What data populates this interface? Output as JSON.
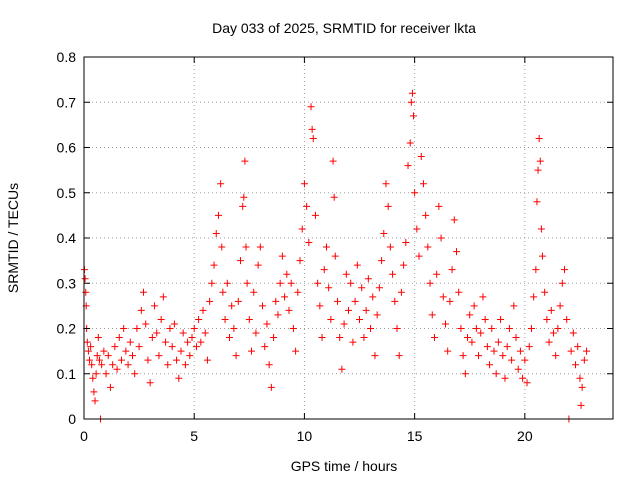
{
  "chart_data": {
    "type": "scatter",
    "title": "Day 033 of 2025, SRMTID for receiver lkta",
    "xlabel": "GPS time / hours",
    "ylabel": "SRMTID / TECUs",
    "xlim": [
      0,
      24
    ],
    "ylim": [
      0,
      0.8
    ],
    "xticks": [
      0,
      5,
      10,
      15,
      20
    ],
    "yticks": [
      0,
      0.1,
      0.2,
      0.3,
      0.4,
      0.5,
      0.6,
      0.7,
      0.8
    ],
    "grid": true,
    "marker": "+",
    "series": [
      {
        "name": "SRMTID",
        "color": "#ff0000",
        "points": [
          [
            0.02,
            0.33
          ],
          [
            0.05,
            0.31
          ],
          [
            0.08,
            0.28
          ],
          [
            0.1,
            0.25
          ],
          [
            0.12,
            0.2
          ],
          [
            0.15,
            0.17
          ],
          [
            0.2,
            0.15
          ],
          [
            0.25,
            0.13
          ],
          [
            0.3,
            0.16
          ],
          [
            0.35,
            0.12
          ],
          [
            0.4,
            0.09
          ],
          [
            0.45,
            0.06
          ],
          [
            0.5,
            0.04
          ],
          [
            0.55,
            0.1
          ],
          [
            0.6,
            0.14
          ],
          [
            0.65,
            0.18
          ],
          [
            0.7,
            0.13
          ],
          [
            0.75,
            0.0
          ],
          [
            0.8,
            0.12
          ],
          [
            0.9,
            0.15
          ],
          [
            1.0,
            0.1
          ],
          [
            1.1,
            0.14
          ],
          [
            1.2,
            0.07
          ],
          [
            1.3,
            0.12
          ],
          [
            1.4,
            0.16
          ],
          [
            1.5,
            0.11
          ],
          [
            1.6,
            0.18
          ],
          [
            1.7,
            0.13
          ],
          [
            1.8,
            0.2
          ],
          [
            1.9,
            0.15
          ],
          [
            2.0,
            0.12
          ],
          [
            2.1,
            0.17
          ],
          [
            2.2,
            0.14
          ],
          [
            2.3,
            0.1
          ],
          [
            2.4,
            0.2
          ],
          [
            2.5,
            0.16
          ],
          [
            2.6,
            0.24
          ],
          [
            2.7,
            0.28
          ],
          [
            2.8,
            0.21
          ],
          [
            2.9,
            0.13
          ],
          [
            3.0,
            0.08
          ],
          [
            3.1,
            0.18
          ],
          [
            3.2,
            0.25
          ],
          [
            3.3,
            0.19
          ],
          [
            3.4,
            0.14
          ],
          [
            3.5,
            0.22
          ],
          [
            3.6,
            0.27
          ],
          [
            3.7,
            0.17
          ],
          [
            3.8,
            0.12
          ],
          [
            3.9,
            0.2
          ],
          [
            4.0,
            0.16
          ],
          [
            4.1,
            0.21
          ],
          [
            4.2,
            0.13
          ],
          [
            4.3,
            0.09
          ],
          [
            4.4,
            0.15
          ],
          [
            4.5,
            0.19
          ],
          [
            4.6,
            0.12
          ],
          [
            4.7,
            0.17
          ],
          [
            4.8,
            0.14
          ],
          [
            4.9,
            0.18
          ],
          [
            5.0,
            0.2
          ],
          [
            5.1,
            0.16
          ],
          [
            5.2,
            0.22
          ],
          [
            5.3,
            0.17
          ],
          [
            5.4,
            0.24
          ],
          [
            5.5,
            0.19
          ],
          [
            5.6,
            0.13
          ],
          [
            5.7,
            0.26
          ],
          [
            5.8,
            0.3
          ],
          [
            5.9,
            0.34
          ],
          [
            6.0,
            0.41
          ],
          [
            6.1,
            0.45
          ],
          [
            6.2,
            0.52
          ],
          [
            6.25,
            0.38
          ],
          [
            6.3,
            0.28
          ],
          [
            6.4,
            0.22
          ],
          [
            6.5,
            0.3
          ],
          [
            6.6,
            0.18
          ],
          [
            6.7,
            0.25
          ],
          [
            6.8,
            0.2
          ],
          [
            6.9,
            0.14
          ],
          [
            7.0,
            0.26
          ],
          [
            7.1,
            0.35
          ],
          [
            7.2,
            0.47
          ],
          [
            7.25,
            0.49
          ],
          [
            7.3,
            0.57
          ],
          [
            7.35,
            0.38
          ],
          [
            7.4,
            0.3
          ],
          [
            7.5,
            0.22
          ],
          [
            7.6,
            0.15
          ],
          [
            7.7,
            0.28
          ],
          [
            7.8,
            0.19
          ],
          [
            7.9,
            0.34
          ],
          [
            8.0,
            0.38
          ],
          [
            8.1,
            0.25
          ],
          [
            8.2,
            0.16
          ],
          [
            8.3,
            0.21
          ],
          [
            8.4,
            0.12
          ],
          [
            8.5,
            0.07
          ],
          [
            8.6,
            0.18
          ],
          [
            8.7,
            0.26
          ],
          [
            8.8,
            0.23
          ],
          [
            8.9,
            0.3
          ],
          [
            9.0,
            0.36
          ],
          [
            9.1,
            0.27
          ],
          [
            9.2,
            0.32
          ],
          [
            9.3,
            0.24
          ],
          [
            9.4,
            0.3
          ],
          [
            9.5,
            0.2
          ],
          [
            9.6,
            0.15
          ],
          [
            9.7,
            0.28
          ],
          [
            9.8,
            0.35
          ],
          [
            9.9,
            0.42
          ],
          [
            10.0,
            0.52
          ],
          [
            10.1,
            0.47
          ],
          [
            10.2,
            0.39
          ],
          [
            10.3,
            0.69
          ],
          [
            10.35,
            0.64
          ],
          [
            10.4,
            0.62
          ],
          [
            10.5,
            0.45
          ],
          [
            10.6,
            0.3
          ],
          [
            10.7,
            0.25
          ],
          [
            10.8,
            0.18
          ],
          [
            10.9,
            0.33
          ],
          [
            11.0,
            0.38
          ],
          [
            11.1,
            0.29
          ],
          [
            11.2,
            0.22
          ],
          [
            11.3,
            0.57
          ],
          [
            11.35,
            0.49
          ],
          [
            11.4,
            0.36
          ],
          [
            11.5,
            0.26
          ],
          [
            11.6,
            0.18
          ],
          [
            11.7,
            0.11
          ],
          [
            11.8,
            0.21
          ],
          [
            11.9,
            0.32
          ],
          [
            12.0,
            0.24
          ],
          [
            12.1,
            0.3
          ],
          [
            12.2,
            0.17
          ],
          [
            12.3,
            0.26
          ],
          [
            12.4,
            0.34
          ],
          [
            12.5,
            0.22
          ],
          [
            12.6,
            0.29
          ],
          [
            12.7,
            0.18
          ],
          [
            12.8,
            0.24
          ],
          [
            12.9,
            0.31
          ],
          [
            13.0,
            0.2
          ],
          [
            13.1,
            0.27
          ],
          [
            13.2,
            0.14
          ],
          [
            13.3,
            0.23
          ],
          [
            13.4,
            0.29
          ],
          [
            13.5,
            0.35
          ],
          [
            13.6,
            0.41
          ],
          [
            13.7,
            0.52
          ],
          [
            13.8,
            0.47
          ],
          [
            13.9,
            0.38
          ],
          [
            14.0,
            0.32
          ],
          [
            14.1,
            0.26
          ],
          [
            14.2,
            0.2
          ],
          [
            14.3,
            0.14
          ],
          [
            14.4,
            0.28
          ],
          [
            14.5,
            0.34
          ],
          [
            14.6,
            0.39
          ],
          [
            14.7,
            0.56
          ],
          [
            14.8,
            0.61
          ],
          [
            14.85,
            0.7
          ],
          [
            14.9,
            0.72
          ],
          [
            14.95,
            0.67
          ],
          [
            15.0,
            0.5
          ],
          [
            15.1,
            0.42
          ],
          [
            15.2,
            0.36
          ],
          [
            15.3,
            0.58
          ],
          [
            15.4,
            0.52
          ],
          [
            15.5,
            0.45
          ],
          [
            15.6,
            0.38
          ],
          [
            15.7,
            0.3
          ],
          [
            15.8,
            0.23
          ],
          [
            15.9,
            0.18
          ],
          [
            16.0,
            0.32
          ],
          [
            16.1,
            0.47
          ],
          [
            16.2,
            0.4
          ],
          [
            16.3,
            0.27
          ],
          [
            16.4,
            0.21
          ],
          [
            16.5,
            0.15
          ],
          [
            16.6,
            0.26
          ],
          [
            16.7,
            0.33
          ],
          [
            16.8,
            0.44
          ],
          [
            16.9,
            0.37
          ],
          [
            17.0,
            0.28
          ],
          [
            17.1,
            0.2
          ],
          [
            17.2,
            0.14
          ],
          [
            17.3,
            0.1
          ],
          [
            17.4,
            0.18
          ],
          [
            17.5,
            0.23
          ],
          [
            17.6,
            0.17
          ],
          [
            17.7,
            0.25
          ],
          [
            17.8,
            0.2
          ],
          [
            17.9,
            0.14
          ],
          [
            18.0,
            0.19
          ],
          [
            18.1,
            0.27
          ],
          [
            18.2,
            0.22
          ],
          [
            18.3,
            0.16
          ],
          [
            18.4,
            0.12
          ],
          [
            18.5,
            0.2
          ],
          [
            18.6,
            0.15
          ],
          [
            18.7,
            0.1
          ],
          [
            18.8,
            0.17
          ],
          [
            18.9,
            0.22
          ],
          [
            19.0,
            0.14
          ],
          [
            19.1,
            0.09
          ],
          [
            19.2,
            0.16
          ],
          [
            19.3,
            0.2
          ],
          [
            19.4,
            0.13
          ],
          [
            19.5,
            0.25
          ],
          [
            19.6,
            0.18
          ],
          [
            19.7,
            0.11
          ],
          [
            19.8,
            0.15
          ],
          [
            19.9,
            0.09
          ],
          [
            20.0,
            0.13
          ],
          [
            20.1,
            0.08
          ],
          [
            20.2,
            0.16
          ],
          [
            20.3,
            0.2
          ],
          [
            20.4,
            0.27
          ],
          [
            20.5,
            0.33
          ],
          [
            20.55,
            0.48
          ],
          [
            20.6,
            0.55
          ],
          [
            20.65,
            0.62
          ],
          [
            20.7,
            0.57
          ],
          [
            20.75,
            0.42
          ],
          [
            20.8,
            0.36
          ],
          [
            20.9,
            0.28
          ],
          [
            21.0,
            0.22
          ],
          [
            21.1,
            0.17
          ],
          [
            21.2,
            0.24
          ],
          [
            21.3,
            0.19
          ],
          [
            21.4,
            0.14
          ],
          [
            21.5,
            0.2
          ],
          [
            21.6,
            0.25
          ],
          [
            21.7,
            0.3
          ],
          [
            21.8,
            0.33
          ],
          [
            21.9,
            0.22
          ],
          [
            22.0,
            0.0
          ],
          [
            22.1,
            0.15
          ],
          [
            22.2,
            0.19
          ],
          [
            22.3,
            0.12
          ],
          [
            22.4,
            0.16
          ],
          [
            22.5,
            0.09
          ],
          [
            22.55,
            0.03
          ],
          [
            22.6,
            0.07
          ],
          [
            22.7,
            0.13
          ],
          [
            22.8,
            0.15
          ]
        ]
      }
    ]
  }
}
